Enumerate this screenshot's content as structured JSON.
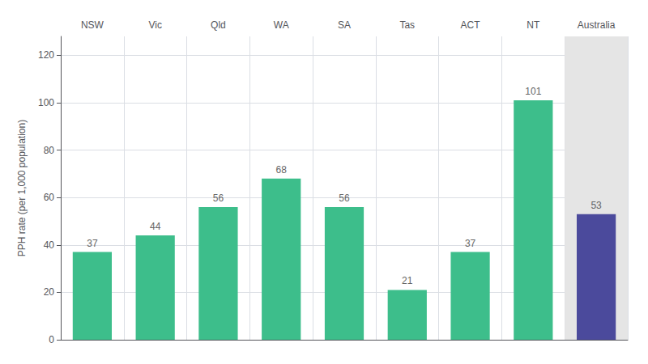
{
  "chart_data": {
    "type": "bar",
    "categories": [
      "NSW",
      "Vic",
      "Qld",
      "WA",
      "SA",
      "Tas",
      "ACT",
      "NT",
      "Australia"
    ],
    "values": [
      37,
      44,
      56,
      68,
      56,
      21,
      37,
      101,
      53
    ],
    "colors": [
      "#3DBE8B",
      "#3DBE8B",
      "#3DBE8B",
      "#3DBE8B",
      "#3DBE8B",
      "#3DBE8B",
      "#3DBE8B",
      "#3DBE8B",
      "#4B4A9C"
    ],
    "ylabel": "PPH rate (per 1,000 population)",
    "ylim": [
      0,
      128
    ],
    "yticks": [
      0,
      20,
      40,
      60,
      80,
      100,
      120
    ],
    "grid": true,
    "data_labels": true
  }
}
